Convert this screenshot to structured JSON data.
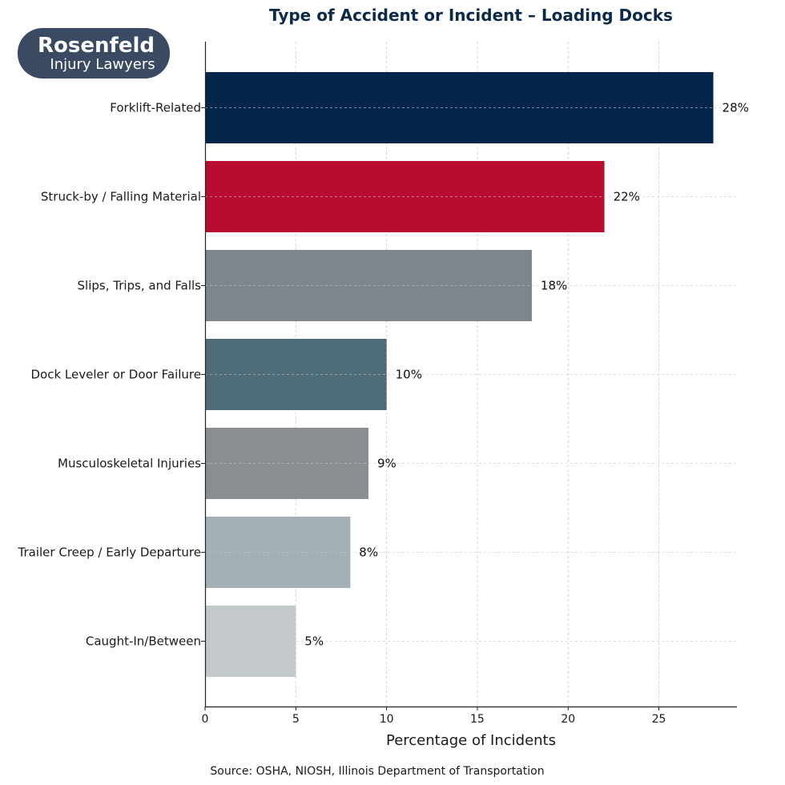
{
  "logo": {
    "line1": "Rosenfeld",
    "line2": "Injury Lawyers",
    "bg_color": "#3a4a63"
  },
  "source": "Source: OSHA, NIOSH, Illinois Department of Transportation",
  "chart_data": {
    "type": "bar",
    "orientation": "horizontal",
    "title": "Type of Accident or Incident – Loading Docks",
    "xlabel": "Percentage of Incidents",
    "ylabel": "",
    "xlim": [
      0,
      29.3
    ],
    "xticks": [
      0,
      5,
      10,
      15,
      20,
      25
    ],
    "grid": true,
    "categories": [
      "Forklift-Related",
      "Struck-by / Falling Material",
      "Slips, Trips, and Falls",
      "Dock Leveler or Door Failure",
      "Musculoskeletal Injuries",
      "Trailer Creep / Early Departure",
      "Caught-In/Between"
    ],
    "values": [
      28,
      22,
      18,
      10,
      9,
      8,
      5
    ],
    "value_labels": [
      "28%",
      "22%",
      "18%",
      "10%",
      "9%",
      "8%",
      "5%"
    ],
    "colors": [
      "#03264a",
      "#b80c30",
      "#7e868d",
      "#4f6d79",
      "#8a8e91",
      "#a3b1b7",
      "#c3c8cb"
    ]
  }
}
